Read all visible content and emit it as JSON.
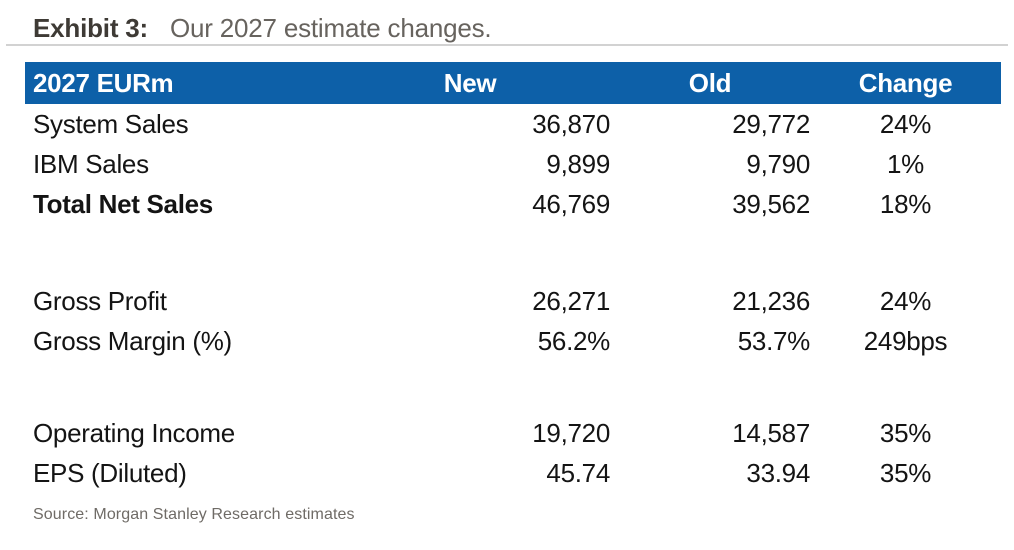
{
  "exhibit": {
    "label": "Exhibit 3:"
  },
  "chart_data": {
    "type": "table",
    "title": "Our 2027 estimate changes.",
    "columns": [
      "2027 EURm",
      "New",
      "Old",
      "Change"
    ],
    "rows": [
      {
        "label": "System Sales",
        "new": "36,870",
        "old": "29,772",
        "change": "24%"
      },
      {
        "label": "IBM Sales",
        "new": "9,899",
        "old": "9,790",
        "change": "1%"
      },
      {
        "label": "Total Net Sales",
        "new": "46,769",
        "old": "39,562",
        "change": "18%"
      },
      {
        "label": "Gross Profit",
        "new": "26,271",
        "old": "21,236",
        "change": "24%"
      },
      {
        "label": "Gross Margin (%)",
        "new": "56.2%",
        "old": "53.7%",
        "change": "249bps"
      },
      {
        "label": "Operating Income",
        "new": "19,720",
        "old": "14,587",
        "change": "35%"
      },
      {
        "label": "EPS (Diluted)",
        "new": "45.74",
        "old": "33.94",
        "change": "35%"
      }
    ]
  },
  "source": "Source: Morgan Stanley Research estimates",
  "colors": {
    "header_bg": "#0d60a8",
    "header_text": "#ffffff",
    "body_text": "#141414",
    "title_label": "#3e3a35",
    "title_text": "#67635e",
    "source_text": "#6f6b66",
    "divider": "#d2d2d2"
  }
}
